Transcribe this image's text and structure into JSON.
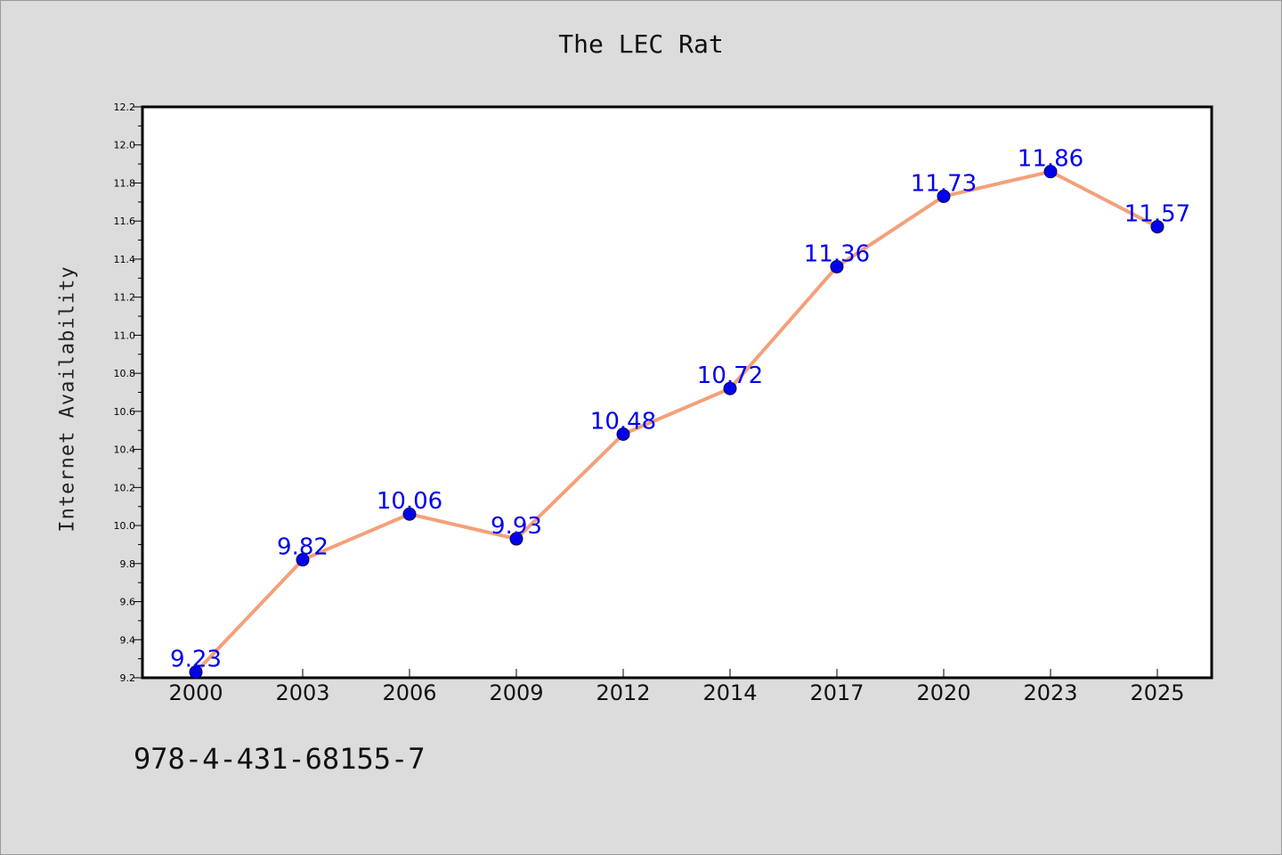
{
  "chart_data": {
    "type": "line",
    "title": "The LEC Rat",
    "xlabel": "",
    "ylabel": "Internet Availability",
    "categories": [
      "2000",
      "2003",
      "2006",
      "2009",
      "2012",
      "2014",
      "2017",
      "2020",
      "2023",
      "2025"
    ],
    "series": [
      {
        "values": [
          9.23,
          9.82,
          10.06,
          9.93,
          10.48,
          10.72,
          11.36,
          11.73,
          11.86,
          11.57
        ],
        "line_color": "#f4a07a",
        "marker_color": "#0000ee",
        "label_color": "#0000ee"
      }
    ],
    "ylim": [
      9.2,
      12.2
    ],
    "yticks": [
      "9.2",
      "9.4",
      "9.6",
      "9.8",
      "10.0",
      "10.2",
      "10.4",
      "10.6",
      "10.8",
      "11.0",
      "11.2",
      "11.4",
      "11.6",
      "11.8",
      "12.0",
      "12.2"
    ],
    "grid": false,
    "legend": "none",
    "data_labels": true
  },
  "footer_text": "978-4-431-68155-7",
  "colors": {
    "background": "#dcdcdc",
    "plot_background": "#ffffff",
    "axis": "#000000"
  }
}
